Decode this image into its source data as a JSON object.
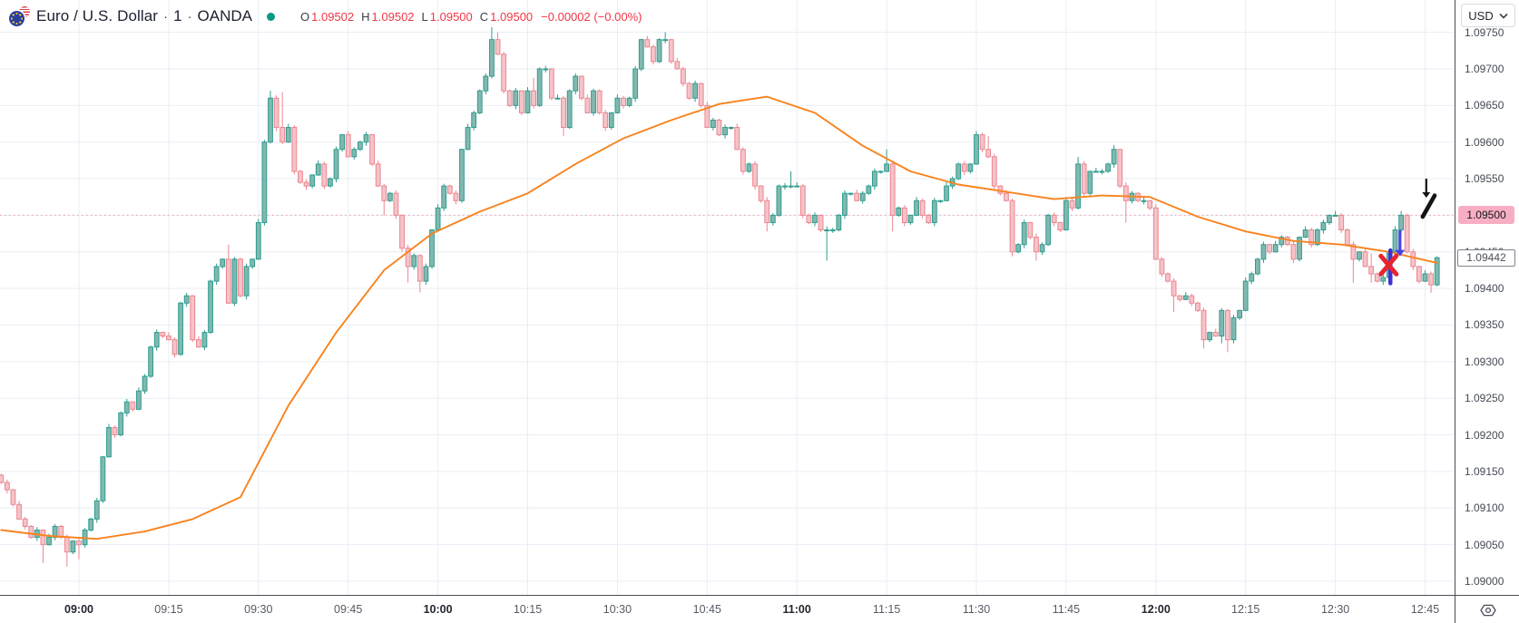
{
  "header": {
    "symbol_name": "Euro / U.S. Dollar",
    "separator": "·",
    "interval": "1",
    "exchange": "OANDA",
    "market_status_color": "#089981",
    "ohlc": {
      "o_label": "O",
      "o": "1.09502",
      "h_label": "H",
      "h": "1.09502",
      "l_label": "L",
      "l": "1.09500",
      "c_label": "C",
      "c": "1.09500",
      "change": "−0.00002 (−0.00%)"
    }
  },
  "toolbar": {
    "currency_label": "USD"
  },
  "price_axis": {
    "ticks": [
      "1.09750",
      "1.09700",
      "1.09650",
      "1.09600",
      "1.09550",
      "1.09500",
      "1.09450",
      "1.09400",
      "1.09350",
      "1.09300",
      "1.09250",
      "1.09200",
      "1.09150",
      "1.09100",
      "1.09050",
      "1.09000"
    ],
    "alert_label": "1.09500",
    "last_price_label": "1.09442"
  },
  "time_axis": {
    "ticks": [
      {
        "label": "09:00",
        "bold": true
      },
      {
        "label": "09:15",
        "bold": false
      },
      {
        "label": "09:30",
        "bold": false
      },
      {
        "label": "09:45",
        "bold": false
      },
      {
        "label": "10:00",
        "bold": true
      },
      {
        "label": "10:15",
        "bold": false
      },
      {
        "label": "10:30",
        "bold": false
      },
      {
        "label": "10:45",
        "bold": false
      },
      {
        "label": "11:00",
        "bold": true
      },
      {
        "label": "11:15",
        "bold": false
      },
      {
        "label": "11:30",
        "bold": false
      },
      {
        "label": "11:45",
        "bold": false
      },
      {
        "label": "12:00",
        "bold": true
      },
      {
        "label": "12:15",
        "bold": false
      },
      {
        "label": "12:30",
        "bold": false
      },
      {
        "label": "12:45",
        "bold": false
      }
    ]
  },
  "chart_data": {
    "type": "candlestick",
    "title": "Euro / U.S. Dollar · 1 · OANDA",
    "symbol": "EURUSD",
    "interval_minutes": 1,
    "venue": "OANDA",
    "legend_ohlc": {
      "open": 1.09502,
      "high": 1.09502,
      "low": 1.095,
      "close": 1.095,
      "change": -2e-05,
      "change_pct": "-0.00%"
    },
    "last_price": 1.09442,
    "price_line": 1.095,
    "ylim": [
      1.09,
      1.0975
    ],
    "y_tick_step": 0.0005,
    "x_tick_labels": [
      "09:00",
      "09:15",
      "09:30",
      "09:45",
      "10:00",
      "10:15",
      "10:30",
      "10:45",
      "11:00",
      "11:15",
      "11:30",
      "11:45",
      "12:00",
      "12:15",
      "12:30",
      "12:45"
    ],
    "grid": true,
    "start_time": "08:47",
    "first_open": 1.09145,
    "closes": [
      1.09135,
      1.09125,
      1.09105,
      1.09085,
      1.09075,
      1.0906,
      1.0907,
      1.0905,
      1.0906,
      1.09075,
      1.0906,
      1.0904,
      1.09055,
      1.0905,
      1.0907,
      1.09085,
      1.0911,
      1.0917,
      1.0921,
      1.092,
      1.0923,
      1.09245,
      1.09235,
      1.0926,
      1.0928,
      1.0932,
      1.0934,
      1.09335,
      1.0933,
      1.0931,
      1.0938,
      1.0939,
      1.0933,
      1.0932,
      1.0934,
      1.0941,
      1.0943,
      1.0944,
      1.0938,
      1.0944,
      1.0939,
      1.0943,
      1.0944,
      1.0949,
      1.096,
      1.0966,
      1.0962,
      1.096,
      1.0962,
      1.0956,
      1.09545,
      1.0954,
      1.09555,
      1.0957,
      1.0954,
      1.0955,
      1.0959,
      1.0961,
      1.0958,
      1.0959,
      1.096,
      1.0961,
      1.0957,
      1.0954,
      1.0952,
      1.0953,
      1.095,
      1.09455,
      1.0943,
      1.09445,
      1.0941,
      1.0943,
      1.0948,
      1.0951,
      1.0954,
      1.0953,
      1.0952,
      1.0959,
      1.0962,
      1.0964,
      1.0967,
      1.0969,
      1.0974,
      1.0972,
      1.0967,
      1.0965,
      1.0967,
      1.0964,
      1.0967,
      1.0965,
      1.097,
      1.097,
      1.0966,
      1.0966,
      1.0962,
      1.0967,
      1.0969,
      1.0966,
      1.0964,
      1.0967,
      1.0964,
      1.0962,
      1.0964,
      1.0966,
      1.0965,
      1.0966,
      1.097,
      1.0974,
      1.0973,
      1.0971,
      1.0974,
      1.0974,
      1.0971,
      1.097,
      1.0968,
      1.0966,
      1.0968,
      1.0965,
      1.0962,
      1.0963,
      1.0961,
      1.0962,
      1.0962,
      1.0959,
      1.0956,
      1.0957,
      1.0954,
      1.0952,
      1.0949,
      1.095,
      1.0954,
      1.0954,
      1.0954,
      1.0954,
      1.095,
      1.0949,
      1.095,
      1.0948,
      1.0948,
      1.0948,
      1.095,
      1.0953,
      1.0953,
      1.0952,
      1.0953,
      1.0954,
      1.0956,
      1.0956,
      1.0957,
      1.095,
      1.0951,
      1.0949,
      1.095,
      1.0952,
      1.095,
      1.0949,
      1.0952,
      1.0952,
      1.0954,
      1.0955,
      1.0957,
      1.0956,
      1.0957,
      1.0961,
      1.0959,
      1.0958,
      1.0954,
      1.0953,
      1.0952,
      1.0945,
      1.0946,
      1.0949,
      1.0947,
      1.0945,
      1.0946,
      1.095,
      1.0949,
      1.0948,
      1.0952,
      1.0951,
      1.0957,
      1.0953,
      1.0956,
      1.0956,
      1.0956,
      1.0957,
      1.0959,
      1.0954,
      1.0952,
      1.0953,
      1.0952,
      1.0952,
      1.0951,
      1.0944,
      1.0942,
      1.0941,
      1.0939,
      1.09385,
      1.0939,
      1.0938,
      1.0937,
      1.0933,
      1.0934,
      1.09335,
      1.0937,
      1.0933,
      1.0936,
      1.0937,
      1.0941,
      1.0942,
      1.0944,
      1.0946,
      1.0945,
      1.0946,
      1.0947,
      1.0946,
      1.0944,
      1.0947,
      1.0948,
      1.0946,
      1.0948,
      1.0949,
      1.095,
      1.095,
      1.0948,
      1.0946,
      1.0944,
      1.0945,
      1.0943,
      1.0942,
      1.0941,
      1.09415,
      1.0945,
      1.0948,
      1.095,
      1.0945,
      1.0943,
      1.0941,
      1.0942,
      1.09405,
      1.09442
    ],
    "wick_overrides": {
      "7": [
        null,
        1.09025
      ],
      "11": [
        null,
        1.0902
      ],
      "13": [
        null,
        1.0903
      ],
      "38": [
        1.0946,
        null
      ],
      "45": [
        1.0967,
        null
      ],
      "47": [
        1.09668,
        null
      ],
      "64": [
        null,
        1.095
      ],
      "67": [
        null,
        1.0945
      ],
      "68": [
        null,
        1.09408
      ],
      "70": [
        null,
        1.09395
      ],
      "82": [
        1.09757,
        null
      ],
      "83": [
        1.0975,
        null
      ],
      "89": [
        1.09688,
        null
      ],
      "94": [
        null,
        1.09608
      ],
      "111": [
        1.0975,
        null
      ],
      "128": [
        null,
        1.09478
      ],
      "132": [
        1.0956,
        null
      ],
      "138": [
        null,
        1.09438
      ],
      "148": [
        1.0959,
        null
      ],
      "149": [
        null,
        1.09478
      ],
      "163": [
        1.09615,
        null
      ],
      "165": [
        1.09608,
        null
      ],
      "169": [
        null,
        1.09444
      ],
      "173": [
        null,
        1.09438
      ],
      "180": [
        1.0958,
        null
      ],
      "186": [
        1.09596,
        null
      ],
      "188": [
        null,
        1.0949
      ],
      "196": [
        null,
        1.09368
      ],
      "201": [
        null,
        1.09318
      ],
      "204": [
        null,
        1.09325
      ],
      "205": [
        null,
        1.09313
      ],
      "223": [
        1.09506,
        null
      ],
      "226": [
        null,
        1.09408
      ],
      "229": [
        1.09448,
        1.09408
      ],
      "234": [
        1.09506,
        null
      ],
      "239": [
        null,
        1.09394
      ]
    },
    "ma_line": {
      "color": "#f8831d",
      "sample_every": 8,
      "values": [
        1.0907,
        1.09062,
        1.09058,
        1.09068,
        1.09085,
        1.09115,
        1.0924,
        1.0934,
        1.09425,
        1.09475,
        1.09505,
        1.0953,
        1.0957,
        1.09605,
        1.0963,
        1.09652,
        1.09662,
        1.0964,
        1.09595,
        1.0956,
        1.09542,
        1.09532,
        1.09522,
        1.09527,
        1.09525,
        1.09498,
        1.09478,
        1.09465,
        1.0946,
        1.0945,
        1.09435
      ]
    },
    "annotations": [
      {
        "kind": "vline",
        "name": "blue-vertical-line",
        "color": "#3d33d1",
        "time": "12:39.2",
        "price_from": 1.09452,
        "price_to": 1.09407,
        "weight": 4.5
      },
      {
        "kind": "x-mark",
        "name": "red-x-mark",
        "color": "#e6252e",
        "time": "12:38.9",
        "price": 1.09432,
        "arm_w": 8.5,
        "arm_h": 10,
        "weight": 5
      },
      {
        "kind": "arrow-down",
        "name": "blue-down-arrow",
        "color": "#4b42e0",
        "time": "12:40.8",
        "price_from": 1.09478,
        "price_to": 1.09444,
        "weight": 3.2,
        "head": 5.5
      },
      {
        "kind": "arrow-down",
        "name": "black-down-arrow",
        "color": "#141414",
        "time": "12:45.2",
        "price_from": 1.09549,
        "price_to": 1.09524,
        "weight": 2.2,
        "head": 4.5
      },
      {
        "kind": "slash",
        "name": "black-slash-stroke",
        "color": "#141414",
        "time_from": "12:44.6",
        "price_from": 1.09498,
        "time_to": "12:46.6",
        "price_to": 1.09527,
        "weight": 4.6
      }
    ],
    "colors": {
      "up_border": "#2f9c8e",
      "up_fill": "#81b8b0",
      "down_border": "#ea868f",
      "down_fill": "#f6c3c9",
      "grid": "#e9eef4",
      "price_line_color": "#f3a9be"
    }
  }
}
